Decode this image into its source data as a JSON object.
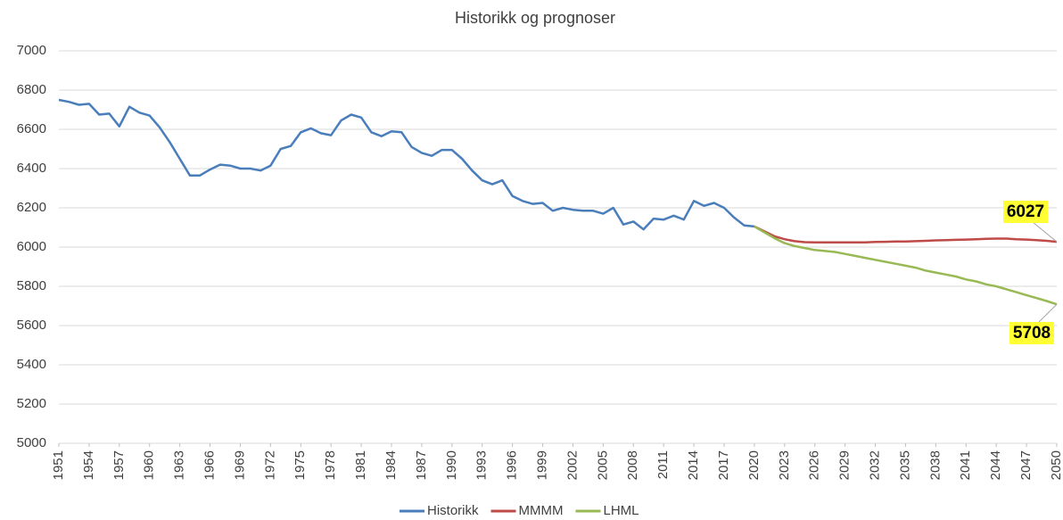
{
  "chart_data": {
    "type": "line",
    "title": "Historikk og prognoser",
    "x": [
      1951,
      1952,
      1953,
      1954,
      1955,
      1956,
      1957,
      1958,
      1959,
      1960,
      1961,
      1962,
      1963,
      1964,
      1965,
      1966,
      1967,
      1968,
      1969,
      1970,
      1971,
      1972,
      1973,
      1974,
      1975,
      1976,
      1977,
      1978,
      1979,
      1980,
      1981,
      1982,
      1983,
      1984,
      1985,
      1986,
      1987,
      1988,
      1989,
      1990,
      1991,
      1992,
      1993,
      1994,
      1995,
      1996,
      1997,
      1998,
      1999,
      2000,
      2001,
      2002,
      2003,
      2004,
      2005,
      2006,
      2007,
      2008,
      2009,
      2010,
      2011,
      2012,
      2013,
      2014,
      2015,
      2016,
      2017,
      2018,
      2019,
      2020,
      2021,
      2022,
      2023,
      2024,
      2025,
      2026,
      2027,
      2028,
      2029,
      2030,
      2031,
      2032,
      2033,
      2034,
      2035,
      2036,
      2037,
      2038,
      2039,
      2040,
      2041,
      2042,
      2043,
      2044,
      2045,
      2046,
      2047,
      2048,
      2049,
      2050
    ],
    "series": [
      {
        "name": "Historikk",
        "color": "#4a7ebb",
        "values": [
          6750,
          6740,
          6725,
          6730,
          6675,
          6680,
          6615,
          6715,
          6685,
          6670,
          6610,
          6535,
          6450,
          6365,
          6365,
          6395,
          6420,
          6415,
          6400,
          6400,
          6390,
          6415,
          6500,
          6515,
          6585,
          6605,
          6580,
          6570,
          6645,
          6675,
          6660,
          6585,
          6565,
          6590,
          6585,
          6510,
          6480,
          6465,
          6495,
          6495,
          6450,
          6390,
          6340,
          6320,
          6340,
          6260,
          6235,
          6220,
          6225,
          6185,
          6200,
          6190,
          6185,
          6185,
          6170,
          6200,
          6115,
          6130,
          6090,
          6145,
          6140,
          6160,
          6140,
          6235,
          6210,
          6225,
          6200,
          6150,
          6110,
          6105,
          null,
          null,
          null,
          null,
          null,
          null,
          null,
          null,
          null,
          null,
          null,
          null,
          null,
          null,
          null,
          null,
          null,
          null,
          null,
          null,
          null,
          null,
          null,
          null,
          null,
          null,
          null,
          null,
          null,
          null
        ]
      },
      {
        "name": "MMMM",
        "color": "#be4b48",
        "values": [
          null,
          null,
          null,
          null,
          null,
          null,
          null,
          null,
          null,
          null,
          null,
          null,
          null,
          null,
          null,
          null,
          null,
          null,
          null,
          null,
          null,
          null,
          null,
          null,
          null,
          null,
          null,
          null,
          null,
          null,
          null,
          null,
          null,
          null,
          null,
          null,
          null,
          null,
          null,
          null,
          null,
          null,
          null,
          null,
          null,
          null,
          null,
          null,
          null,
          null,
          null,
          null,
          null,
          null,
          null,
          null,
          null,
          null,
          null,
          null,
          null,
          null,
          null,
          null,
          null,
          null,
          null,
          null,
          null,
          6105,
          6080,
          6055,
          6040,
          6030,
          6025,
          6024,
          6024,
          6024,
          6024,
          6024,
          6024,
          6026,
          6027,
          6028,
          6028,
          6030,
          6032,
          6034,
          6035,
          6037,
          6038,
          6040,
          6042,
          6043,
          6043,
          6040,
          6038,
          6035,
          6032,
          6027
        ]
      },
      {
        "name": "LHML",
        "color": "#98b954",
        "values": [
          null,
          null,
          null,
          null,
          null,
          null,
          null,
          null,
          null,
          null,
          null,
          null,
          null,
          null,
          null,
          null,
          null,
          null,
          null,
          null,
          null,
          null,
          null,
          null,
          null,
          null,
          null,
          null,
          null,
          null,
          null,
          null,
          null,
          null,
          null,
          null,
          null,
          null,
          null,
          null,
          null,
          null,
          null,
          null,
          null,
          null,
          null,
          null,
          null,
          null,
          null,
          null,
          null,
          null,
          null,
          null,
          null,
          null,
          null,
          null,
          null,
          null,
          null,
          null,
          null,
          null,
          null,
          null,
          null,
          6105,
          6075,
          6045,
          6020,
          6005,
          5995,
          5985,
          5980,
          5975,
          5965,
          5955,
          5945,
          5935,
          5925,
          5915,
          5905,
          5895,
          5880,
          5870,
          5860,
          5850,
          5835,
          5825,
          5810,
          5800,
          5785,
          5770,
          5755,
          5740,
          5725,
          5708
        ]
      }
    ],
    "xlim": [
      1951,
      2050
    ],
    "xticks": [
      1951,
      1954,
      1957,
      1960,
      1963,
      1966,
      1969,
      1972,
      1975,
      1978,
      1981,
      1984,
      1987,
      1990,
      1993,
      1996,
      1999,
      2002,
      2005,
      2008,
      2011,
      2014,
      2017,
      2020,
      2023,
      2026,
      2029,
      2032,
      2035,
      2038,
      2041,
      2044,
      2047,
      2050
    ],
    "ylim": [
      5000,
      7000
    ],
    "yticks": [
      5000,
      5200,
      5400,
      5600,
      5800,
      6000,
      6200,
      6400,
      6600,
      6800,
      7000
    ],
    "grid": true,
    "legend": "bottom"
  }
}
